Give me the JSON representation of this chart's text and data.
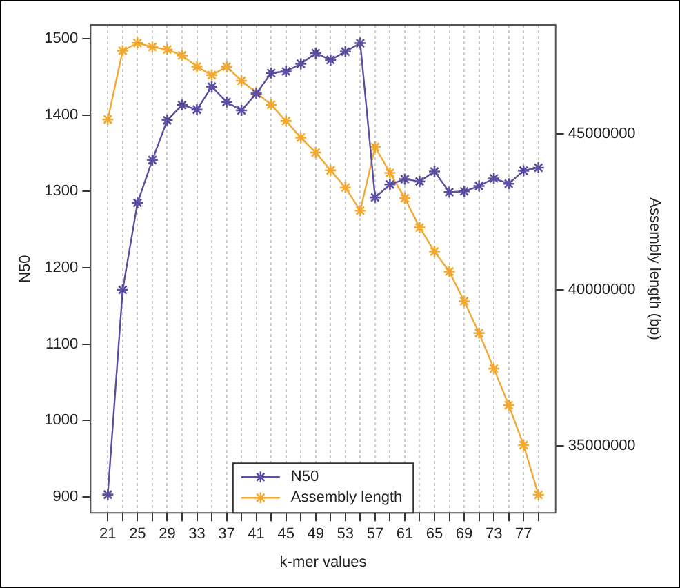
{
  "chart_data": {
    "type": "line",
    "xlabel": "k-mer values",
    "ylabel": "N50",
    "y2label": "Assembly length (bp)",
    "x": [
      21,
      23,
      25,
      27,
      29,
      31,
      33,
      35,
      37,
      39,
      41,
      43,
      45,
      47,
      49,
      51,
      53,
      55,
      57,
      59,
      61,
      63,
      65,
      67,
      69,
      71,
      73,
      75,
      77,
      79
    ],
    "series": [
      {
        "name": "N50",
        "color": "#5b4ea0",
        "values": [
          903,
          1171,
          1285,
          1341,
          1393,
          1413,
          1407,
          1437,
          1417,
          1406,
          1428,
          1455,
          1457,
          1467,
          1481,
          1472,
          1483,
          1494,
          1292,
          1309,
          1316,
          1313,
          1326,
          1299,
          1300,
          1307,
          1317,
          1310,
          1327,
          1331
        ]
      },
      {
        "name": "Assembly length",
        "color": "#f2a933",
        "axis": "y2",
        "values": [
          45460000,
          47660000,
          47910000,
          47780000,
          47700000,
          47510000,
          47150000,
          46880000,
          47150000,
          46700000,
          46320000,
          45930000,
          45410000,
          44880000,
          44400000,
          43830000,
          43280000,
          42540000,
          44580000,
          43750000,
          42940000,
          42000000,
          41230000,
          40590000,
          39640000,
          38620000,
          37480000,
          36310000,
          35030000,
          33440000
        ]
      }
    ],
    "xlim": [
      18.68,
      81.32
    ],
    "xticks": [
      21,
      {
        "value": 23,
        "label": null
      },
      25,
      {
        "value": 27,
        "label": null
      },
      29,
      {
        "value": 31,
        "label": null
      },
      33,
      {
        "value": 35,
        "label": null
      },
      37,
      {
        "value": 39,
        "label": null
      },
      41,
      {
        "value": 43,
        "label": null
      },
      45,
      {
        "value": 47,
        "label": null
      },
      49,
      {
        "value": 51,
        "label": null
      },
      53,
      {
        "value": 55,
        "label": null
      },
      57,
      {
        "value": 59,
        "label": null
      },
      61,
      {
        "value": 63,
        "label": null
      },
      65,
      {
        "value": 67,
        "label": null
      },
      69,
      {
        "value": 71,
        "label": null
      },
      73,
      {
        "value": 75,
        "label": null
      },
      77,
      {
        "value": 79,
        "label": null
      }
    ],
    "ylim": [
      879,
      1518
    ],
    "yticks": [
      900,
      1000,
      1100,
      1200,
      1300,
      1400,
      1500
    ],
    "y2lim": [
      32860000,
      48490000
    ],
    "y2ticks": [
      35000000,
      40000000,
      45000000
    ],
    "grid": "x",
    "legend": "bottom",
    "marker": "cross",
    "line_style": "solid"
  }
}
